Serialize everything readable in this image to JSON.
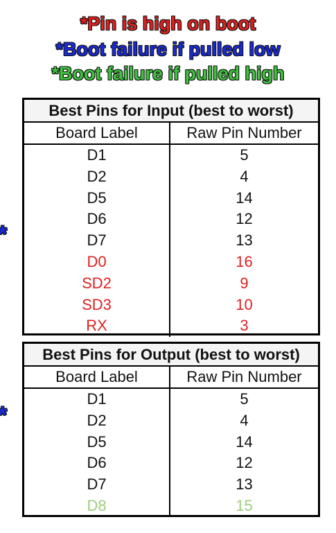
{
  "colors": {
    "high_on_boot": "#e02020",
    "fail_if_low": "#1a2bd6",
    "fail_if_high": "#3fc23f",
    "normal": "#111111",
    "muted_green": "#9ccd7e"
  },
  "legend": [
    {
      "text": "*Pin is high on boot",
      "color": "#e02020"
    },
    {
      "text": "*Boot failure if pulled low",
      "color": "#1a2bd6"
    },
    {
      "text": "*Boot failure if pulled high",
      "color": "#3fc23f"
    }
  ],
  "side_markers": {
    "input": "*",
    "output": "*"
  },
  "input_table": {
    "title": "Best Pins for Input (best to worst)",
    "headers": [
      "Board Label",
      "Raw Pin Number"
    ],
    "rows": [
      {
        "label": "D1",
        "pin": "5",
        "color": "#111111"
      },
      {
        "label": "D2",
        "pin": "4",
        "color": "#111111"
      },
      {
        "label": "D5",
        "pin": "14",
        "color": "#111111"
      },
      {
        "label": "D6",
        "pin": "12",
        "color": "#111111"
      },
      {
        "label": "D7",
        "pin": "13",
        "color": "#111111"
      },
      {
        "label": "D0",
        "pin": "16",
        "color": "#e02020"
      },
      {
        "label": "SD2",
        "pin": "9",
        "color": "#e02020"
      },
      {
        "label": "SD3",
        "pin": "10",
        "color": "#e02020"
      },
      {
        "label": "RX",
        "pin": "3",
        "color": "#e02020"
      }
    ]
  },
  "output_table": {
    "title": "Best Pins for Output (best to worst)",
    "headers": [
      "Board Label",
      "Raw Pin Number"
    ],
    "rows": [
      {
        "label": "D1",
        "pin": "5",
        "color": "#111111"
      },
      {
        "label": "D2",
        "pin": "4",
        "color": "#111111"
      },
      {
        "label": "D5",
        "pin": "14",
        "color": "#111111"
      },
      {
        "label": "D6",
        "pin": "12",
        "color": "#111111"
      },
      {
        "label": "D7",
        "pin": "13",
        "color": "#111111"
      },
      {
        "label": "D8",
        "pin": "15",
        "color": "#9ccd7e"
      }
    ]
  }
}
